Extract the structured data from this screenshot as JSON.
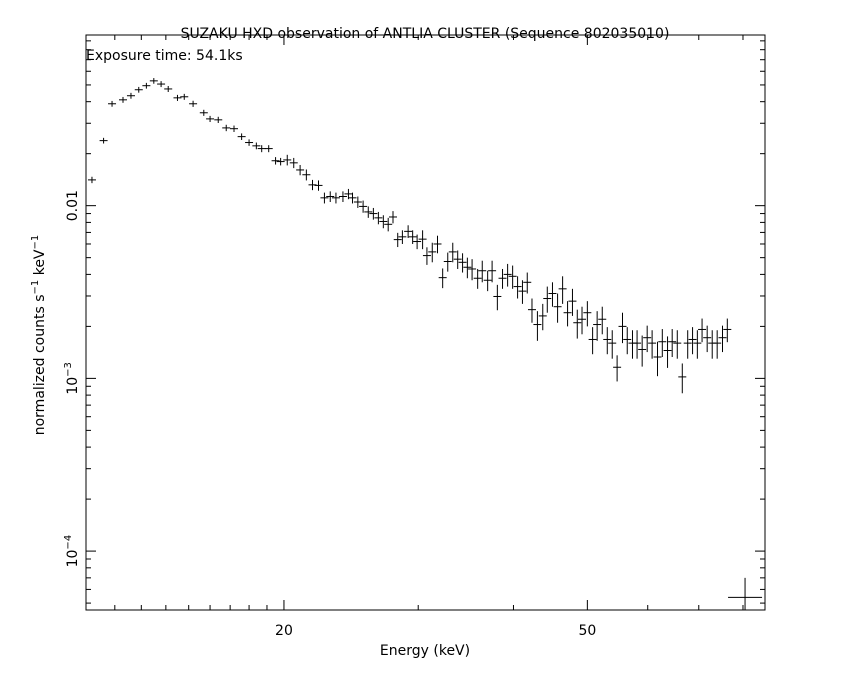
{
  "chart_data": {
    "type": "errorbar",
    "title": "SUZAKU HXD observation of ANTLIA CLUSTER (Sequence 802035010)",
    "subtitle": "Exposure time: 54.1ks",
    "x_label": "Energy (keV)",
    "y_label": "normalized counts s−1 keV−1",
    "log_x": true,
    "log_y": true,
    "color": "#000000",
    "xlim": [
      11,
      85.5
    ],
    "ylim": [
      4.56e-05,
      0.0973
    ],
    "xticks": [
      20,
      50
    ],
    "x_minor_ticks": [
      12,
      13,
      14,
      15,
      16,
      17,
      18,
      19,
      30,
      40,
      60,
      70,
      80
    ],
    "yticks": [
      {
        "value": 0.0001,
        "label": "10−4"
      },
      {
        "value": 0.001,
        "label": "10−3"
      },
      0.01
    ],
    "y_minor_ticks": [
      5e-05,
      6e-05,
      7e-05,
      8e-05,
      9e-05,
      0.0002,
      0.0003,
      0.0004,
      0.0005,
      0.0006,
      0.0007,
      0.0008,
      0.0009,
      0.002,
      0.003,
      0.004,
      0.005,
      0.006,
      0.007,
      0.008,
      0.009,
      0.02,
      0.03,
      0.04,
      0.05,
      0.06,
      0.07,
      0.08,
      0.09
    ],
    "series": [
      {
        "x": [
          11.2,
          11.6,
          11.9,
          12.3,
          12.6,
          12.9,
          13.2,
          13.5,
          13.8,
          14.1,
          14.5,
          14.8,
          15.2,
          15.7,
          16.0,
          16.4,
          16.8,
          17.2,
          17.6,
          18.0,
          18.4,
          18.7,
          19.1,
          19.5,
          19.8,
          20.2,
          20.6,
          21.0,
          21.4,
          21.8,
          22.2,
          22.6,
          23.0,
          23.4,
          23.9,
          24.3,
          24.6,
          25.0,
          25.4,
          25.8,
          26.2,
          26.6,
          27.0,
          27.4,
          27.8,
          28.2,
          28.6,
          29.1,
          29.5,
          29.9,
          30.4,
          30.8,
          31.3,
          31.8,
          32.3,
          32.8,
          33.3,
          33.8,
          34.3,
          34.8,
          35.3,
          35.9,
          36.4,
          37.0,
          37.5,
          38.1,
          38.7,
          39.3,
          39.9,
          40.5,
          41.1,
          41.7,
          42.3,
          43.0,
          43.7,
          44.3,
          45.0,
          45.7,
          46.4,
          47.1,
          47.8,
          48.5,
          49.2,
          50.0,
          50.8,
          51.5,
          52.3,
          53.1,
          53.9,
          54.7,
          55.6,
          56.4,
          57.3,
          58.1,
          59.0,
          59.9,
          60.8,
          61.8,
          62.7,
          63.7,
          64.6,
          65.6,
          66.6,
          67.7,
          68.7,
          69.7,
          70.7,
          71.8,
          72.9,
          74.0,
          75.2,
          76.3
        ],
        "values": [
          0.0141,
          0.0238,
          0.0389,
          0.041,
          0.0433,
          0.0469,
          0.0495,
          0.0528,
          0.0506,
          0.0474,
          0.0421,
          0.0427,
          0.0389,
          0.0345,
          0.0318,
          0.0314,
          0.0282,
          0.0279,
          0.0251,
          0.0232,
          0.0222,
          0.0214,
          0.0214,
          0.0182,
          0.018,
          0.0184,
          0.0177,
          0.0161,
          0.0151,
          0.0132,
          0.0131,
          0.0111,
          0.0113,
          0.0111,
          0.0113,
          0.0117,
          0.0111,
          0.0105,
          0.0099,
          0.0092,
          0.009,
          0.0085,
          0.0081,
          0.0078,
          0.0086,
          0.00636,
          0.0066,
          0.0071,
          0.0066,
          0.0062,
          0.0064,
          0.00514,
          0.0054,
          0.006,
          0.00383,
          0.00475,
          0.0054,
          0.0049,
          0.0047,
          0.0044,
          0.0043,
          0.0038,
          0.0042,
          0.0037,
          0.0042,
          0.00298,
          0.0038,
          0.004,
          0.0039,
          0.0034,
          0.0032,
          0.0036,
          0.0025,
          0.00205,
          0.0023,
          0.0029,
          0.0031,
          0.0026,
          0.0033,
          0.0024,
          0.0028,
          0.0021,
          0.0022,
          0.0024,
          0.00168,
          0.00205,
          0.0022,
          0.00168,
          0.0016,
          0.00116,
          0.002,
          0.00168,
          0.0016,
          0.0016,
          0.00147,
          0.00172,
          0.0016,
          0.00133,
          0.00163,
          0.00145,
          0.00163,
          0.0016,
          0.00102,
          0.0016,
          0.00168,
          0.0016,
          0.00192,
          0.00172,
          0.0016,
          0.0016,
          0.00172,
          0.00192
        ],
        "yerr": [
          0.0006,
          0.0009,
          0.0015,
          0.0016,
          0.0017,
          0.0018,
          0.0019,
          0.002,
          0.002,
          0.0019,
          0.0017,
          0.0017,
          0.0016,
          0.0014,
          0.0013,
          0.0013,
          0.0012,
          0.0012,
          0.0011,
          0.001,
          0.001,
          0.001,
          0.001,
          0.0009,
          0.0009,
          0.0013,
          0.0012,
          0.0011,
          0.0011,
          0.0009,
          0.0009,
          0.0008,
          0.0008,
          0.0008,
          0.0008,
          0.0008,
          0.0008,
          0.0008,
          0.0008,
          0.0007,
          0.0007,
          0.0007,
          0.0007,
          0.0007,
          0.0007,
          0.0006,
          0.0006,
          0.0006,
          0.0006,
          0.0006,
          0.0008,
          0.0006,
          0.0007,
          0.0007,
          0.0005,
          0.0006,
          0.0007,
          0.0006,
          0.0006,
          0.0006,
          0.0006,
          0.0005,
          0.0006,
          0.0005,
          0.0006,
          0.0005,
          0.0005,
          0.0006,
          0.0006,
          0.0005,
          0.0005,
          0.0005,
          0.0004,
          0.0004,
          0.0004,
          0.0005,
          0.0005,
          0.0005,
          0.0006,
          0.0004,
          0.0005,
          0.0004,
          0.0004,
          0.0004,
          0.0003,
          0.0004,
          0.0004,
          0.0003,
          0.0003,
          0.0002,
          0.0004,
          0.0003,
          0.0003,
          0.0003,
          0.0003,
          0.0003,
          0.0003,
          0.0003,
          0.0003,
          0.0003,
          0.0003,
          0.0003,
          0.0002,
          0.0003,
          0.0003,
          0.0003,
          0.0003,
          0.0003,
          0.0003,
          0.0003,
          0.0003,
          0.0003
        ]
      },
      {
        "x": [
          80.5
        ],
        "values": [
          5.4e-05
        ],
        "yerr": [
          1.6e-05
        ]
      }
    ]
  }
}
